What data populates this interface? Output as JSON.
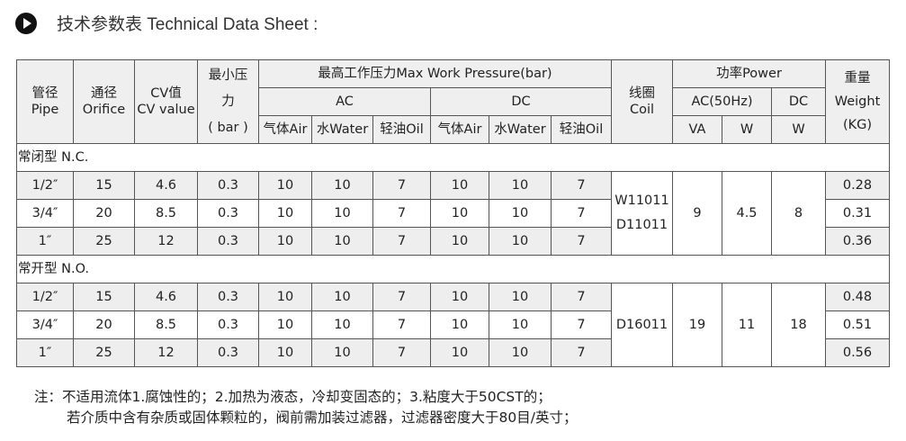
{
  "title": "技术参数表 Technical Data Sheet :",
  "header": {
    "pipe": [
      "管径",
      "Pipe"
    ],
    "orifice": [
      "通径",
      "Orifice"
    ],
    "cv": [
      "CV值",
      "CV value"
    ],
    "min_pressure": [
      "最小压",
      "力",
      "( bar )"
    ],
    "max_pressure": "最高工作压力Max Work Pressure(bar)",
    "ac": "AC",
    "dc": "DC",
    "air": "气体Air",
    "water": "水Water",
    "oil": "轻油Oil",
    "coil": [
      "线圈",
      "Coil"
    ],
    "power": "功率Power",
    "ac50": "AC(50Hz)",
    "pdc": "DC",
    "va": "VA",
    "w": "W",
    "dcw": "W",
    "weight": [
      "重量",
      "Weight",
      "(KG)"
    ]
  },
  "sections": [
    {
      "label": "常闭型 N.C.",
      "coil": [
        "W11011",
        "D11011"
      ],
      "va": "9",
      "w": "4.5",
      "dcw": "8",
      "rows": [
        {
          "cells": [
            "1/2″",
            "15",
            "4.6",
            "0.3",
            "10",
            "10",
            "7",
            "10",
            "10",
            "7"
          ],
          "weight": "0.28"
        },
        {
          "cells": [
            "3/4″",
            "20",
            "8.5",
            "0.3",
            "10",
            "10",
            "7",
            "10",
            "10",
            "7"
          ],
          "weight": "0.31"
        },
        {
          "cells": [
            "1″",
            "25",
            "12",
            "0.3",
            "10",
            "10",
            "7",
            "10",
            "10",
            "7"
          ],
          "weight": "0.36"
        }
      ]
    },
    {
      "label": "常开型 N.O.",
      "coil": [
        "D16011"
      ],
      "va": "19",
      "w": "11",
      "dcw": "18",
      "rows": [
        {
          "cells": [
            "1/2″",
            "15",
            "4.6",
            "0.3",
            "10",
            "10",
            "7",
            "10",
            "10",
            "7"
          ],
          "weight": "0.48"
        },
        {
          "cells": [
            "3/4″",
            "20",
            "8.5",
            "0.3",
            "10",
            "10",
            "7",
            "10",
            "10",
            "7"
          ],
          "weight": "0.51"
        },
        {
          "cells": [
            "1″",
            "25",
            "12",
            "0.3",
            "10",
            "10",
            "7",
            "10",
            "10",
            "7"
          ],
          "weight": "0.56"
        }
      ]
    }
  ],
  "notes": [
    "注：不适用流体1.腐蚀性的；2.加热为液态，冷却变固态的；3.粘度大于50CST的；",
    "若介质中含有杂质或固体颗粒的，阀前需加装过滤器，过滤器密度大于80目/英寸；"
  ]
}
